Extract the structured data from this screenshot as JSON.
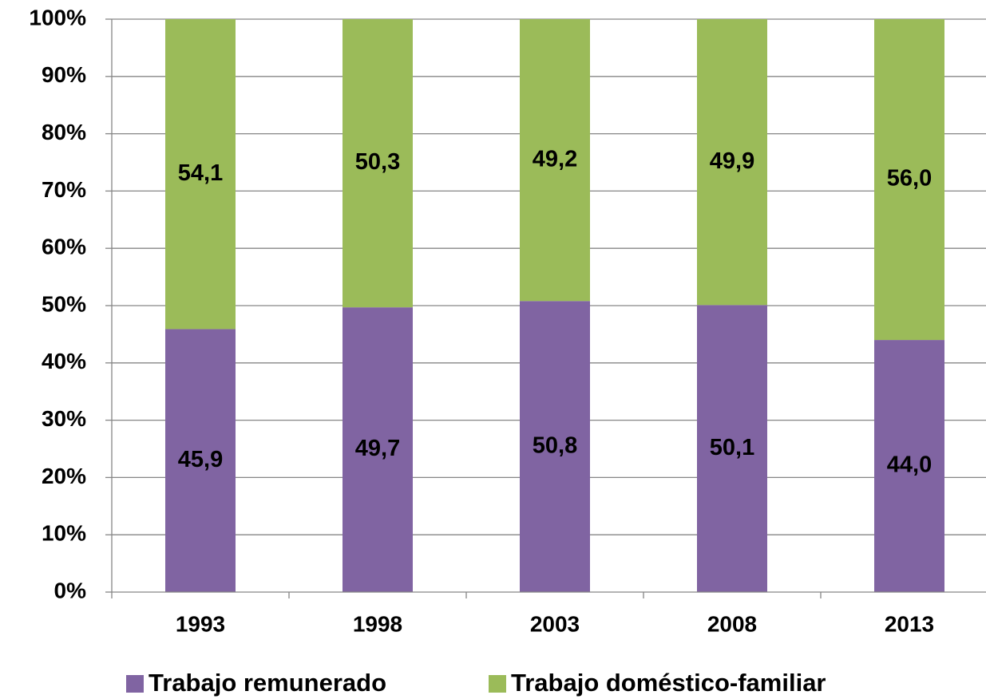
{
  "chart_data": {
    "type": "stacked_bar",
    "categories": [
      "1993",
      "1998",
      "2003",
      "2008",
      "2013"
    ],
    "series": [
      {
        "name": "Trabajo remunerado",
        "color": "#8064a2",
        "values": [
          45.9,
          49.7,
          50.8,
          50.1,
          44.0
        ],
        "value_labels": [
          "45,9",
          "49,7",
          "50,8",
          "50,1",
          "44,0"
        ]
      },
      {
        "name": "Trabajo doméstico-familiar",
        "color": "#9bbb59",
        "values": [
          54.1,
          50.3,
          49.2,
          49.9,
          56.0
        ],
        "value_labels": [
          "54,1",
          "50,3",
          "49,2",
          "49,9",
          "56,0"
        ]
      }
    ],
    "ylim": [
      0,
      100
    ],
    "yticks": [
      {
        "value": 0,
        "label": "0%"
      },
      {
        "value": 10,
        "label": "10%"
      },
      {
        "value": 20,
        "label": "20%"
      },
      {
        "value": 30,
        "label": "30%"
      },
      {
        "value": 40,
        "label": "40%"
      },
      {
        "value": 50,
        "label": "50%"
      },
      {
        "value": 60,
        "label": "60%"
      },
      {
        "value": 70,
        "label": "70%"
      },
      {
        "value": 80,
        "label": "80%"
      },
      {
        "value": 90,
        "label": "90%"
      },
      {
        "value": 100,
        "label": "100%"
      }
    ],
    "grid": true,
    "legend": "bottom"
  }
}
